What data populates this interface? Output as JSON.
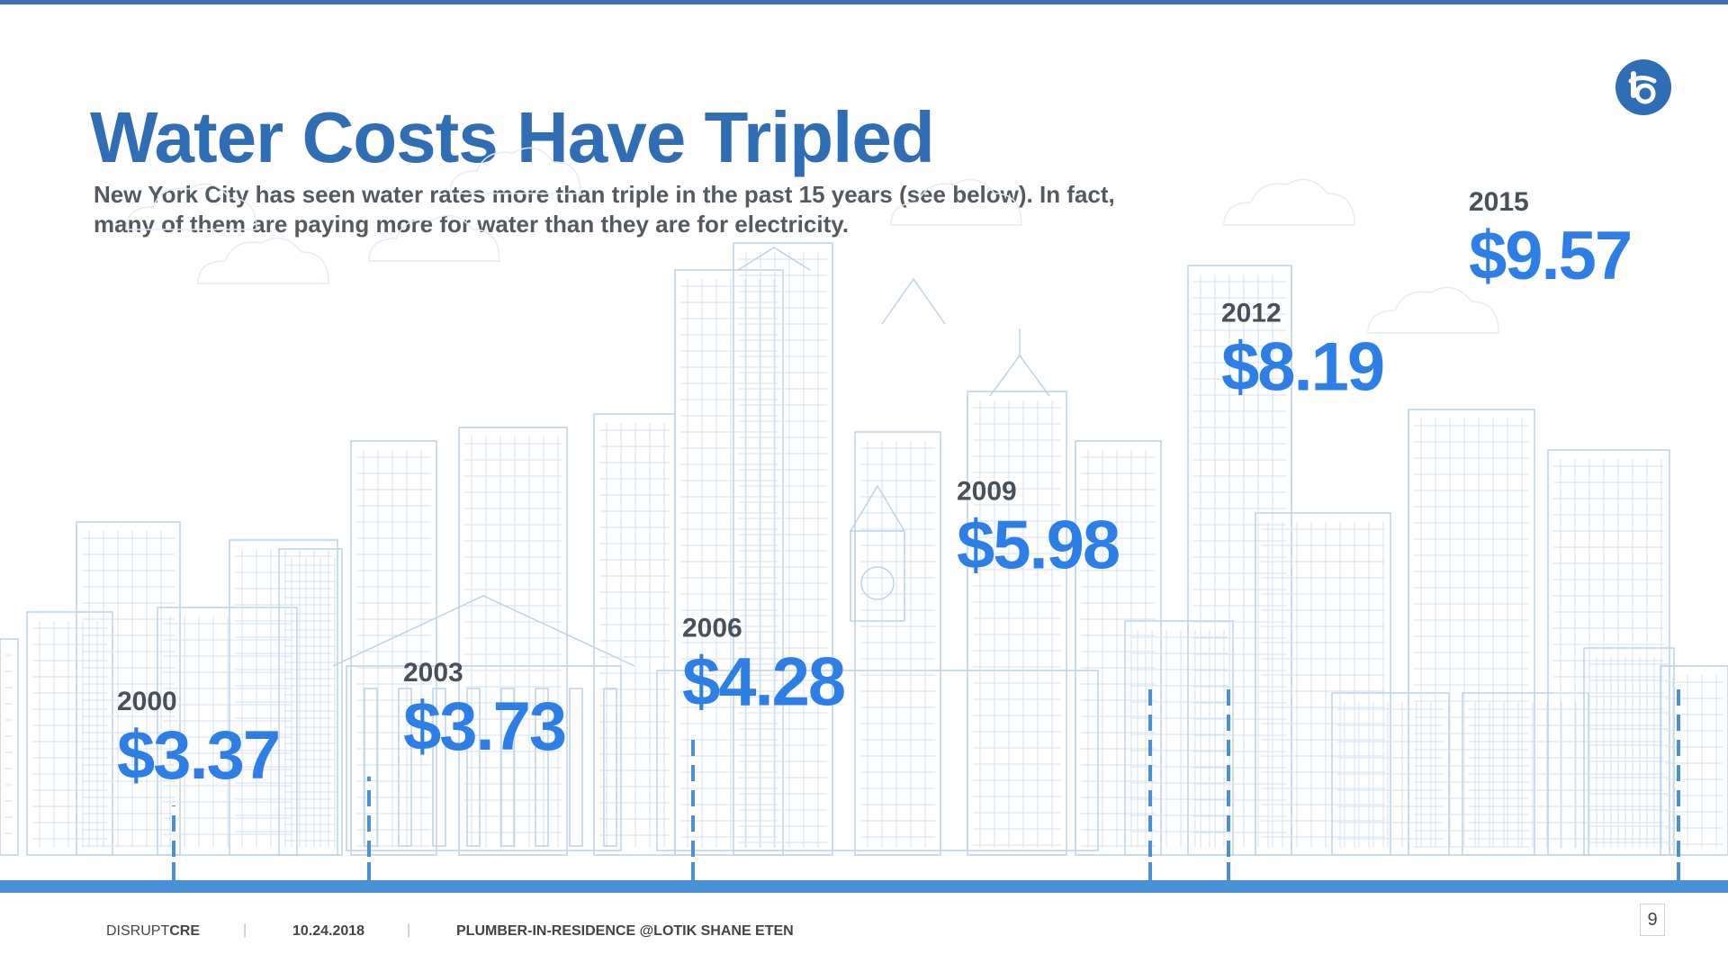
{
  "title": "Water Costs Have Tripled",
  "subtitle": "New York City has seen water rates more than triple in the past 15 years (see below). In fact, many of them are paying more for water than they are for electricity.",
  "colors": {
    "accent": "#2f6db5",
    "value_text": "#2e7ee8",
    "year_text": "#4a5058",
    "skyline_line": "#a9c4e4",
    "timeline": "#4a90d9"
  },
  "logo_icon": "lotik-logo-icon",
  "chart_data": {
    "type": "bar",
    "categories": [
      "2000",
      "2003",
      "2006",
      "2009",
      "2012",
      "2015"
    ],
    "values": [
      3.37,
      3.73,
      4.28,
      5.98,
      8.19,
      9.57
    ],
    "value_labels": [
      "$3.37",
      "$3.73",
      "$4.28",
      "$5.98",
      "$8.19",
      "$9.57"
    ],
    "title": "",
    "xlabel": "",
    "ylabel": "",
    "grid": false,
    "legend": "none"
  },
  "footer": {
    "brand_light": "DISRUPT",
    "brand_bold": "CRE",
    "separator": "|",
    "date": "10.24.2018",
    "presenter": "PLUMBER-IN-RESIDENCE @LOTIK SHANE ETEN",
    "page_number": "9"
  }
}
